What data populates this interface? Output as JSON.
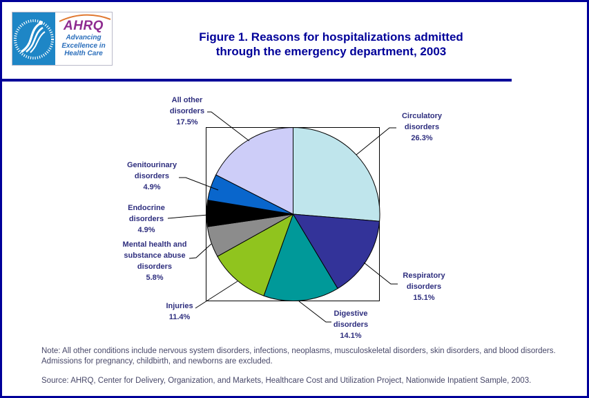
{
  "header": {
    "logo": {
      "ahrq_text": "AHRQ",
      "tagline_lines": [
        "Advancing",
        "Excellence in",
        "Health Care"
      ],
      "hhs_ring_text": "DEPARTMENT OF HEALTH & HUMAN SERVICES - USA"
    },
    "title_lines": [
      "Figure 1. Reasons for hospitalizations admitted",
      "through the emergency department, 2003"
    ]
  },
  "chart_data": {
    "type": "pie",
    "title": "Figure 1. Reasons for hospitalizations admitted through the emergency department, 2003",
    "start_angle_deg": -90,
    "direction": "clockwise",
    "total_pct": 100.0,
    "slices": [
      {
        "label": "Circulatory disorders",
        "label_lines": [
          "Circulatory",
          "disorders"
        ],
        "value_pct": 26.3,
        "pct_label": "26.3%",
        "color": "#bfe5ec"
      },
      {
        "label": "Respiratory disorders",
        "label_lines": [
          "Respiratory",
          "disorders"
        ],
        "value_pct": 15.1,
        "pct_label": "15.1%",
        "color": "#333399"
      },
      {
        "label": "Digestive disorders",
        "label_lines": [
          "Digestive",
          "disorders"
        ],
        "value_pct": 14.1,
        "pct_label": "14.1%",
        "color": "#009999"
      },
      {
        "label": "Injuries",
        "label_lines": [
          "Injuries"
        ],
        "value_pct": 11.4,
        "pct_label": "11.4%",
        "color": "#90c41e"
      },
      {
        "label": "Mental health and substance abuse disorders",
        "label_lines": [
          "Mental health and",
          "substance abuse",
          "disorders"
        ],
        "value_pct": 5.8,
        "pct_label": "5.8%",
        "color": "#8c8c8c"
      },
      {
        "label": "Endocrine disorders",
        "label_lines": [
          "Endocrine",
          "disorders"
        ],
        "value_pct": 4.9,
        "pct_label": "4.9%",
        "color": "#000000"
      },
      {
        "label": "Genitourinary disorders",
        "label_lines": [
          "Genitourinary",
          "disorders"
        ],
        "value_pct": 4.9,
        "pct_label": "4.9%",
        "color": "#0966cc"
      },
      {
        "label": "All other disorders",
        "label_lines": [
          "All other",
          "disorders"
        ],
        "value_pct": 17.5,
        "pct_label": "17.5%",
        "color": "#cdcdf8"
      }
    ]
  },
  "footer": {
    "note": "Note: All other conditions include nervous system disorders, infections, neoplasms, musculoskeletal disorders, skin disorders, and blood disorders. Admissions for pregnancy, childbirth, and newborns are excluded.",
    "source": "Source: AHRQ, Center for Delivery, Organization, and Markets, Healthcare Cost and Utilization Project, Nationwide Inpatient Sample, 2003."
  },
  "colors": {
    "accent": "#000099",
    "label_text": "#2e2e7e",
    "note_text": "#474768",
    "hhs_blue": "#1e86c6",
    "ahrq_purple": "#8e2c90",
    "tagline_blue": "#2a6ebb"
  }
}
